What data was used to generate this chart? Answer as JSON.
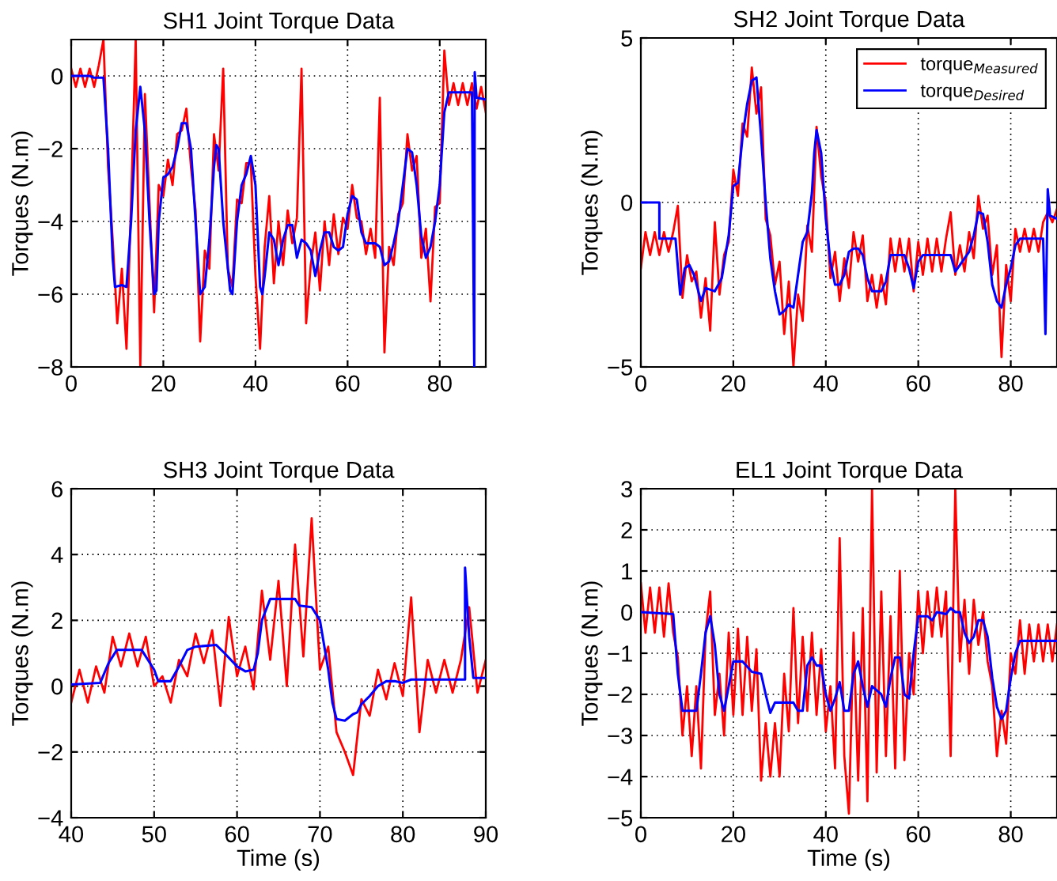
{
  "chart_data": [
    {
      "type": "line",
      "title": "SH1 Joint Torque Data",
      "ylabel": "Torques (N.m)",
      "xlim": [
        0,
        90
      ],
      "ylim": [
        -8,
        1
      ],
      "xticks": [
        0,
        20,
        40,
        60,
        80
      ],
      "yticks": [
        -8,
        -6,
        -4,
        -2,
        0
      ],
      "grid": true,
      "line_style": "solid",
      "x": [
        0,
        1,
        2,
        3,
        4,
        5,
        6,
        7,
        8,
        9,
        10,
        11,
        12,
        13,
        14,
        15,
        16,
        17,
        18,
        19,
        20,
        21,
        22,
        23,
        24,
        25,
        26,
        27,
        28,
        29,
        30,
        31,
        32,
        33,
        34,
        35,
        36,
        37,
        38,
        39,
        40,
        41,
        42,
        43,
        44,
        45,
        46,
        47,
        48,
        49,
        50,
        51,
        52,
        53,
        54,
        55,
        56,
        57,
        58,
        59,
        60,
        61,
        62,
        63,
        64,
        65,
        66,
        67,
        68,
        69,
        70,
        71,
        72,
        73,
        74,
        75,
        76,
        77,
        78,
        79,
        80,
        81,
        82,
        83,
        84,
        85,
        86,
        87,
        88,
        89,
        90
      ],
      "series": [
        {
          "color": "#ff0000",
          "values": [
            0.2,
            -0.3,
            0.2,
            -0.3,
            0.2,
            -0.3,
            0.3,
            1,
            -2.5,
            -4.5,
            -6.8,
            -5.3,
            -7.5,
            -3.5,
            1,
            -8,
            -0.5,
            -3.5,
            -6.5,
            -3,
            -3.3,
            -2.3,
            -3,
            -1.6,
            -1.5,
            -0.9,
            -2.5,
            -3.7,
            -7.3,
            -4.8,
            -5.3,
            -1.6,
            -2.6,
            0.2,
            -5.3,
            -5.8,
            -3.4,
            -3.5,
            -2.4,
            -2.4,
            -5.5,
            -7.5,
            -4.7,
            -3.3,
            -5.7,
            -4,
            -5.2,
            -3.7,
            -4.6,
            -3.9,
            0.2,
            -6.8,
            -5.2,
            -4.3,
            -5.9,
            -4,
            -5.2,
            -3.8,
            -4.9,
            -3.9,
            -4.2,
            -3,
            -3.9,
            -4,
            -4.9,
            -4.2,
            -5,
            -0.6,
            -7.6,
            -4.7,
            -5.2,
            -3.8,
            -3.5,
            -1.6,
            -2.6,
            -2.2,
            -5,
            -4.2,
            -6.2,
            -3.6,
            -3.5,
            0.7,
            -0.8,
            -0.2,
            -0.8,
            -0.2,
            -0.8,
            -0.2,
            -0.9,
            -0.3,
            -1
          ]
        },
        {
          "color": "#0000ff",
          "x": [
            0,
            4,
            5,
            7,
            8,
            9,
            9.5,
            11,
            12,
            13,
            14,
            15,
            16,
            17,
            18,
            18.5,
            19,
            20,
            21,
            22,
            23,
            24,
            25,
            26,
            27,
            28,
            29,
            30,
            31,
            31.5,
            32,
            33,
            34.5,
            35,
            36,
            37,
            38,
            39,
            40,
            41,
            41.5,
            42,
            43,
            44,
            45,
            46,
            47,
            48,
            49,
            50,
            51,
            52,
            53,
            54,
            55,
            56,
            57,
            58,
            59,
            60,
            61,
            62,
            63,
            64,
            66,
            67,
            68,
            69,
            70,
            71,
            72,
            73,
            74,
            75,
            76,
            77,
            78,
            79,
            80,
            81,
            82,
            87,
            87.5,
            87.6,
            88,
            90
          ],
          "values": [
            0,
            0,
            -0.05,
            -0.05,
            -2,
            -5,
            -5.8,
            -5.75,
            -5.8,
            -4,
            -1.5,
            -0.3,
            -1.5,
            -4,
            -6,
            -5.9,
            -4,
            -2.8,
            -2.7,
            -2.5,
            -2,
            -1.3,
            -1.3,
            -2,
            -4,
            -6,
            -5.8,
            -4.5,
            -2.5,
            -1.9,
            -2,
            -4,
            -5.9,
            -6,
            -4,
            -3,
            -2.7,
            -2.2,
            -3,
            -5.8,
            -6,
            -5.5,
            -4.3,
            -4.5,
            -5.2,
            -4.5,
            -4.1,
            -4.1,
            -5,
            -4.5,
            -4.6,
            -4.8,
            -5.5,
            -4.8,
            -4.3,
            -4.3,
            -4.7,
            -4.8,
            -4.7,
            -3.8,
            -3.3,
            -3.4,
            -4.3,
            -4.6,
            -4.6,
            -4.7,
            -5.2,
            -5.1,
            -4.6,
            -4,
            -3,
            -2,
            -2.1,
            -3,
            -4.4,
            -5,
            -4.7,
            -4,
            -3,
            -1,
            -0.45,
            -0.45,
            -8,
            0.1,
            -0.6,
            -0.65
          ]
        }
      ]
    },
    {
      "type": "line",
      "title": "SH2 Joint Torque Data",
      "ylabel": "Torques (N.m)",
      "xlim": [
        0,
        90
      ],
      "ylim": [
        -5,
        5
      ],
      "xticks": [
        0,
        20,
        40,
        60,
        80
      ],
      "yticks": [
        -5,
        0,
        5
      ],
      "grid": true,
      "legend": "top right",
      "line_style": "solid",
      "x": [
        0,
        1,
        2,
        3,
        4,
        5,
        6,
        7,
        8,
        9,
        10,
        11,
        12,
        13,
        14,
        15,
        16,
        17,
        18,
        19,
        20,
        21,
        22,
        23,
        24,
        25,
        26,
        27,
        28,
        29,
        30,
        31,
        32,
        33,
        34,
        35,
        36,
        37,
        38,
        39,
        40,
        41,
        42,
        43,
        44,
        45,
        46,
        47,
        48,
        49,
        50,
        51,
        52,
        53,
        54,
        55,
        56,
        57,
        58,
        59,
        60,
        61,
        62,
        63,
        64,
        65,
        66,
        67,
        68,
        69,
        70,
        71,
        72,
        73,
        74,
        75,
        76,
        77,
        78,
        79,
        80,
        81,
        82,
        83,
        84,
        85,
        86,
        87,
        88,
        89,
        90
      ],
      "series": [
        {
          "name": "torque$_{Measured}$",
          "color": "#ff0000",
          "values": [
            -2,
            -0.9,
            -1.6,
            -0.9,
            -1.6,
            -0.9,
            -1.5,
            -0.9,
            -0.1,
            -2.9,
            -1.6,
            -2.4,
            -2.1,
            -3.5,
            -2.3,
            -3.9,
            -0.6,
            -2.8,
            -1.6,
            -1.2,
            1,
            0.2,
            2.4,
            2,
            4.1,
            2.7,
            3.5,
            -0.5,
            -1,
            -2.5,
            -1.8,
            -4,
            -2.4,
            -5,
            -2.8,
            -3.6,
            -0.7,
            -1.5,
            2.3,
            0.8,
            0,
            -2.3,
            -1.5,
            -3,
            -1.7,
            -2.6,
            -0.9,
            -1.8,
            -1,
            -3,
            -2.2,
            -3.2,
            -2.2,
            -3.1,
            -1.1,
            -2.1,
            -1.1,
            -2.1,
            -1.1,
            -2.7,
            -1.2,
            -2.2,
            -1.1,
            -2.1,
            -1.1,
            -2.1,
            -1.1,
            -0.3,
            -2.2,
            -1.3,
            -2.1,
            -0.9,
            -1.7,
            0.2,
            -0.8,
            -0.4,
            -2.2,
            -1.3,
            -4.7,
            -1.9,
            -3,
            -0.8,
            -1.5,
            -0.8,
            -1.5,
            -0.8,
            -1.5,
            -0.6,
            -0.3,
            -0.6,
            -0.2
          ]
        },
        {
          "name": "torque$_{Desired}$",
          "color": "#0000ff",
          "x": [
            0,
            4,
            4,
            7.5,
            8.5,
            9.5,
            10.5,
            11.5,
            13,
            14,
            16,
            17.5,
            19,
            20,
            21,
            22,
            23,
            24,
            25,
            26,
            27,
            28,
            29,
            30,
            31,
            32,
            33,
            34,
            35,
            36,
            37,
            37.5,
            38,
            39,
            40,
            41,
            42,
            43,
            44,
            45,
            46,
            47,
            48,
            49,
            50,
            52,
            53,
            54,
            57,
            58,
            59,
            60,
            61,
            67,
            68,
            69,
            70,
            71,
            72,
            73,
            74,
            75,
            76,
            77,
            78,
            79,
            80,
            81,
            82,
            87,
            87.5,
            88,
            88.5,
            90
          ],
          "values": [
            0,
            0,
            -1.1,
            -1.1,
            -2.8,
            -2,
            -1.9,
            -2.2,
            -3,
            -2.6,
            -2.7,
            -2.3,
            -1,
            0.5,
            0.6,
            2,
            3,
            3.7,
            3.8,
            2,
            0,
            -1.7,
            -2.7,
            -3.4,
            -3.3,
            -3.1,
            -3.2,
            -2.2,
            -1.2,
            -0.9,
            0.3,
            1.5,
            2.2,
            1.5,
            -0.5,
            -1.8,
            -2.5,
            -2.5,
            -2.2,
            -1.5,
            -1.4,
            -1.4,
            -1.6,
            -2.3,
            -2.7,
            -2.7,
            -2.4,
            -1.6,
            -1.6,
            -2,
            -2.6,
            -1.8,
            -1.6,
            -1.6,
            -2.1,
            -1.9,
            -1.7,
            -1.5,
            -1,
            -0.3,
            -0.35,
            -1.2,
            -2.5,
            -3,
            -3.2,
            -2.5,
            -2,
            -1.3,
            -1.1,
            -1.1,
            -4,
            0.4,
            -0.4,
            -0.5
          ]
        }
      ]
    },
    {
      "type": "line",
      "title": "SH3 Joint Torque Data",
      "xlabel": "Time (s)",
      "ylabel": "Torques (N.m)",
      "xlim": [
        40,
        90
      ],
      "ylim": [
        -4,
        6
      ],
      "xticks": [
        40,
        50,
        60,
        70,
        80,
        90
      ],
      "yticks": [
        -4,
        -2,
        0,
        2,
        4,
        6
      ],
      "grid": true,
      "line_style": "solid",
      "x": [
        40,
        41,
        42,
        43,
        44,
        45,
        46,
        47,
        48,
        49,
        50,
        51,
        52,
        53,
        54,
        55,
        56,
        57,
        58,
        59,
        60,
        61,
        62,
        63,
        64,
        65,
        66,
        67,
        68,
        69,
        70,
        71,
        72,
        73,
        74,
        75,
        76,
        77,
        78,
        79,
        80,
        81,
        82,
        83,
        84,
        85,
        86,
        87,
        88,
        89,
        90
      ],
      "series": [
        {
          "color": "#ff0000",
          "values": [
            -0.5,
            0.5,
            -0.5,
            0.6,
            -0.2,
            1.5,
            0.6,
            1.6,
            0.6,
            1.5,
            0,
            0.3,
            -0.5,
            0.8,
            0.3,
            1.6,
            0.7,
            1.7,
            -0.6,
            2.1,
            0.3,
            1.2,
            -0.1,
            2.9,
            0.8,
            3.2,
            0,
            4.3,
            0.9,
            5.1,
            0.5,
            1.2,
            -1.4,
            -2,
            -2.7,
            -0.4,
            -0.9,
            0.5,
            -0.4,
            0.7,
            -0.3,
            2.7,
            -1.4,
            0.8,
            -0.2,
            0.8,
            -0.2,
            0.8,
            2.4,
            -0.2,
            0.8
          ]
        },
        {
          "color": "#0000ff",
          "x": [
            40,
            43.5,
            44.5,
            45.5,
            48.5,
            50,
            50.5,
            52,
            53,
            54,
            55,
            57.5,
            58.5,
            60,
            61,
            62,
            62.5,
            63,
            64,
            67,
            67.5,
            69,
            70,
            71,
            71.5,
            72,
            73,
            74,
            74.5,
            75,
            76,
            77,
            78,
            79,
            80,
            81,
            87.5,
            87.5,
            88,
            88.5,
            90
          ],
          "values": [
            0.05,
            0.1,
            0.7,
            1.1,
            1.1,
            0.5,
            0.15,
            0.15,
            0.6,
            1.1,
            1.2,
            1.25,
            1,
            0.6,
            0.45,
            0.5,
            1,
            2,
            2.65,
            2.65,
            2.45,
            2.4,
            2,
            0.5,
            -0.5,
            -1,
            -1.05,
            -0.85,
            -0.8,
            -0.55,
            -0.3,
            0,
            0.15,
            0.15,
            0.1,
            0.2,
            0.2,
            3.6,
            1.5,
            0.25,
            0.25
          ]
        }
      ]
    },
    {
      "type": "line",
      "title": "EL1 Joint Torque Data",
      "xlabel": "Time (s)",
      "ylabel": "Torques (N.m)",
      "xlim": [
        0,
        90
      ],
      "ylim": [
        -5,
        3
      ],
      "xticks": [
        0,
        20,
        40,
        60,
        80
      ],
      "yticks": [
        -5,
        -4,
        -3,
        -2,
        -1,
        0,
        1,
        2,
        3
      ],
      "grid": true,
      "line_style": "solid",
      "x": [
        0,
        1,
        2,
        3,
        4,
        5,
        6,
        7,
        8,
        9,
        10,
        11,
        12,
        13,
        14,
        15,
        16,
        17,
        18,
        19,
        20,
        21,
        22,
        23,
        24,
        25,
        26,
        27,
        28,
        29,
        30,
        31,
        32,
        33,
        34,
        35,
        36,
        37,
        38,
        39,
        40,
        41,
        42,
        43,
        44,
        45,
        46,
        47,
        48,
        49,
        50,
        51,
        52,
        53,
        54,
        55,
        56,
        57,
        58,
        59,
        60,
        61,
        62,
        63,
        64,
        65,
        66,
        67,
        68,
        69,
        70,
        71,
        72,
        73,
        74,
        75,
        76,
        77,
        78,
        79,
        80,
        81,
        82,
        83,
        84,
        85,
        86,
        87,
        88,
        89,
        90
      ],
      "series": [
        {
          "color": "#ff0000",
          "values": [
            0.7,
            -0.5,
            0.6,
            -0.5,
            0.6,
            -0.6,
            0.7,
            -0.5,
            -1.1,
            -3,
            -1.8,
            -3.5,
            -1.8,
            -3.8,
            -0.5,
            0.5,
            -2.5,
            -1.5,
            -3,
            -0.5,
            -2.5,
            -0.4,
            -2.5,
            -0.6,
            -2.4,
            -0.9,
            -4.1,
            -2.7,
            -4,
            -2.7,
            -4,
            -1.5,
            -2.9,
            0.1,
            -2.7,
            -0.6,
            -2.4,
            -0.5,
            -2.5,
            -0.9,
            -2.9,
            -1.8,
            -3.8,
            1.8,
            -3.5,
            -4.9,
            -0.5,
            -4.1,
            0.1,
            -4.6,
            3,
            -3.9,
            0.5,
            -3.5,
            -0.1,
            -3.8,
            1,
            -3.6,
            -1,
            -2,
            0.5,
            -1,
            0.5,
            -0.6,
            0.6,
            -0.6,
            0.5,
            -3.5,
            3,
            -1.2,
            0.3,
            -1.5,
            0.3,
            -0.8,
            0,
            -1.2,
            -1.8,
            -3.5,
            -2.4,
            -3.2,
            -1,
            -1.5,
            -0.2,
            -1.5,
            -0.3,
            -1.2,
            -0.3,
            -1.2,
            -0.3,
            -1.2,
            -0.3
          ]
        },
        {
          "color": "#0000ff",
          "x": [
            0,
            7,
            8,
            9,
            12,
            13,
            14,
            15,
            16,
            17,
            18,
            19,
            20,
            22,
            24,
            26,
            27,
            28,
            29,
            33,
            34,
            35,
            36,
            37,
            38,
            39,
            40,
            41,
            42,
            43,
            44,
            45,
            46,
            47,
            48,
            49,
            50,
            51,
            52,
            53,
            54,
            55,
            56,
            57,
            58,
            59,
            60,
            62,
            63,
            64,
            66,
            67,
            68,
            69,
            70,
            71,
            72,
            73,
            74,
            75,
            76,
            77,
            78,
            79,
            80,
            81,
            82,
            90
          ],
          "values": [
            0,
            -0.05,
            -1.5,
            -2.4,
            -2.4,
            -1.5,
            -0.5,
            -0.1,
            -0.8,
            -2,
            -2.4,
            -1.8,
            -1.2,
            -1.2,
            -1.45,
            -1.5,
            -2,
            -2.45,
            -2.2,
            -2.2,
            -2.4,
            -2.4,
            -1.3,
            -1.1,
            -1.3,
            -1.3,
            -2,
            -2.4,
            -2.1,
            -1.7,
            -2.4,
            -2.4,
            -1.5,
            -1.2,
            -1.8,
            -2.3,
            -1.8,
            -1.9,
            -2,
            -2.3,
            -1.6,
            -1.1,
            -1.1,
            -2,
            -2.1,
            -1,
            -0.1,
            -0.1,
            -0.2,
            0,
            -0.05,
            0.1,
            0,
            0,
            -0.5,
            -0.75,
            -0.6,
            -0.2,
            -0.2,
            -0.6,
            -1.6,
            -2.3,
            -2.6,
            -2.4,
            -1.6,
            -1,
            -0.7,
            -0.7
          ]
        }
      ]
    }
  ]
}
